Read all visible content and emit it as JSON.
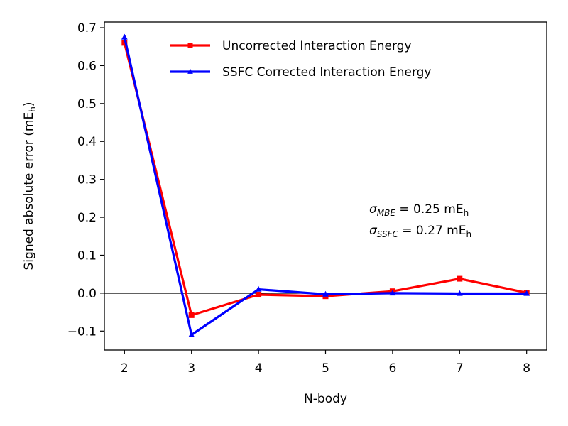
{
  "chart_data": {
    "type": "line",
    "xlabel": "N-body",
    "ylabel": "Signed absolute error (mE",
    "ylabel_sub": "h",
    "ylabel_end": ")",
    "x": [
      2,
      3,
      4,
      5,
      6,
      7,
      8
    ],
    "xlim": [
      1.7,
      8.3
    ],
    "ylim": [
      -0.15,
      0.715
    ],
    "x_ticks": [
      2,
      3,
      4,
      5,
      6,
      7,
      8
    ],
    "y_ticks": [
      -0.1,
      0.0,
      0.1,
      0.2,
      0.3,
      0.4,
      0.5,
      0.6,
      0.7
    ],
    "y_tick_labels": [
      "−0.1",
      "0.0",
      "0.1",
      "0.2",
      "0.3",
      "0.4",
      "0.5",
      "0.6",
      "0.7"
    ],
    "zero_line": true,
    "grid": false,
    "legend_position": "top-right",
    "series": [
      {
        "name": "Uncorrected Interaction Energy",
        "color": "#ff0000",
        "marker": "square",
        "values": [
          0.66,
          -0.058,
          -0.004,
          -0.008,
          0.005,
          0.038,
          0.001
        ]
      },
      {
        "name": "SSFC Corrected Interaction Energy",
        "color": "#0000ff",
        "marker": "triangle",
        "values": [
          0.675,
          -0.11,
          0.01,
          -0.003,
          0.0,
          -0.001,
          -0.001
        ]
      }
    ],
    "annotations": [
      {
        "symbol": "σ",
        "subscript": "MBE",
        "text": " = 0.25 mE",
        "unit_sub": "h"
      },
      {
        "symbol": "σ",
        "subscript": "SSFC",
        "text": " = 0.27 mE",
        "unit_sub": "h"
      }
    ]
  }
}
